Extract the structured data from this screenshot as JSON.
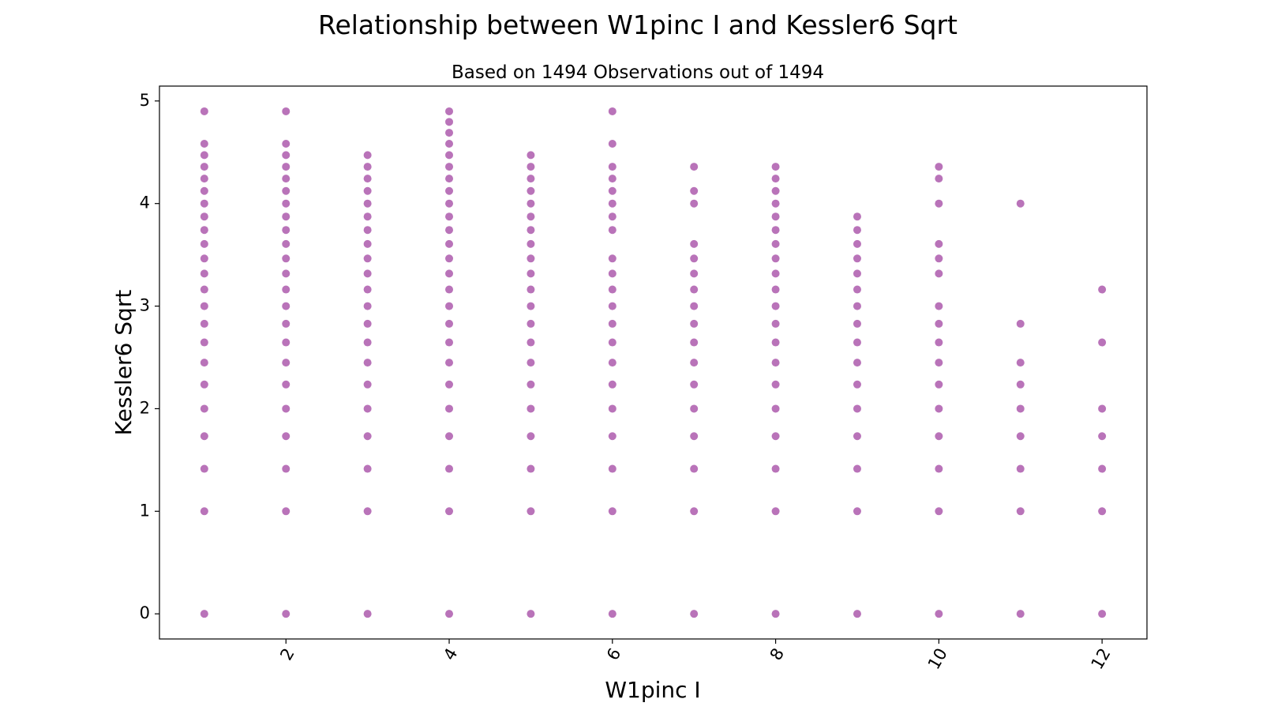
{
  "chart_data": {
    "type": "scatter",
    "title": "Relationship between W1pinc I and Kessler6 Sqrt",
    "subtitle": "Based on 1494 Observations out of 1494",
    "xlabel": "W1pinc I",
    "ylabel": "Kessler6 Sqrt",
    "xlim": [
      0.45,
      12.55
    ],
    "ylim": [
      -0.245,
      5.145
    ],
    "x_ticks": [
      2,
      4,
      6,
      8,
      10,
      12
    ],
    "y_ticks": [
      0,
      1,
      2,
      3,
      4,
      5
    ],
    "grid": false,
    "marker_color": "#800080",
    "marker_opacity": 0.55,
    "series": [
      {
        "points": [
          [
            1,
            0
          ],
          [
            1,
            1
          ],
          [
            1,
            1.414
          ],
          [
            1,
            1.732
          ],
          [
            1,
            2
          ],
          [
            1,
            2.236
          ],
          [
            1,
            2.449
          ],
          [
            1,
            2.646
          ],
          [
            1,
            2.828
          ],
          [
            1,
            3
          ],
          [
            1,
            3.162
          ],
          [
            1,
            3.317
          ],
          [
            1,
            3.464
          ],
          [
            1,
            3.606
          ],
          [
            1,
            3.742
          ],
          [
            1,
            3.873
          ],
          [
            1,
            4
          ],
          [
            1,
            4.123
          ],
          [
            1,
            4.243
          ],
          [
            1,
            4.359
          ],
          [
            1,
            4.472
          ],
          [
            1,
            4.583
          ],
          [
            1,
            4.899
          ],
          [
            2,
            0
          ],
          [
            2,
            1
          ],
          [
            2,
            1.414
          ],
          [
            2,
            1.732
          ],
          [
            2,
            2
          ],
          [
            2,
            2.236
          ],
          [
            2,
            2.449
          ],
          [
            2,
            2.646
          ],
          [
            2,
            2.828
          ],
          [
            2,
            3
          ],
          [
            2,
            3.162
          ],
          [
            2,
            3.317
          ],
          [
            2,
            3.464
          ],
          [
            2,
            3.606
          ],
          [
            2,
            3.742
          ],
          [
            2,
            3.873
          ],
          [
            2,
            4
          ],
          [
            2,
            4.123
          ],
          [
            2,
            4.243
          ],
          [
            2,
            4.359
          ],
          [
            2,
            4.472
          ],
          [
            2,
            4.583
          ],
          [
            2,
            4.899
          ],
          [
            3,
            0
          ],
          [
            3,
            1
          ],
          [
            3,
            1.414
          ],
          [
            3,
            1.732
          ],
          [
            3,
            2
          ],
          [
            3,
            2.236
          ],
          [
            3,
            2.449
          ],
          [
            3,
            2.646
          ],
          [
            3,
            2.828
          ],
          [
            3,
            3
          ],
          [
            3,
            3.162
          ],
          [
            3,
            3.317
          ],
          [
            3,
            3.464
          ],
          [
            3,
            3.606
          ],
          [
            3,
            3.742
          ],
          [
            3,
            3.873
          ],
          [
            3,
            4
          ],
          [
            3,
            4.123
          ],
          [
            3,
            4.243
          ],
          [
            3,
            4.359
          ],
          [
            3,
            4.472
          ],
          [
            4,
            0
          ],
          [
            4,
            1
          ],
          [
            4,
            1.414
          ],
          [
            4,
            1.732
          ],
          [
            4,
            2
          ],
          [
            4,
            2.236
          ],
          [
            4,
            2.449
          ],
          [
            4,
            2.646
          ],
          [
            4,
            2.828
          ],
          [
            4,
            3
          ],
          [
            4,
            3.162
          ],
          [
            4,
            3.317
          ],
          [
            4,
            3.464
          ],
          [
            4,
            3.606
          ],
          [
            4,
            3.742
          ],
          [
            4,
            3.873
          ],
          [
            4,
            4
          ],
          [
            4,
            4.123
          ],
          [
            4,
            4.243
          ],
          [
            4,
            4.359
          ],
          [
            4,
            4.472
          ],
          [
            4,
            4.583
          ],
          [
            4,
            4.69
          ],
          [
            4,
            4.796
          ],
          [
            4,
            4.899
          ],
          [
            5,
            0
          ],
          [
            5,
            1
          ],
          [
            5,
            1.414
          ],
          [
            5,
            1.732
          ],
          [
            5,
            2
          ],
          [
            5,
            2.236
          ],
          [
            5,
            2.449
          ],
          [
            5,
            2.646
          ],
          [
            5,
            2.828
          ],
          [
            5,
            3
          ],
          [
            5,
            3.162
          ],
          [
            5,
            3.317
          ],
          [
            5,
            3.464
          ],
          [
            5,
            3.606
          ],
          [
            5,
            3.742
          ],
          [
            5,
            3.873
          ],
          [
            5,
            4
          ],
          [
            5,
            4.123
          ],
          [
            5,
            4.243
          ],
          [
            5,
            4.359
          ],
          [
            5,
            4.472
          ],
          [
            6,
            0
          ],
          [
            6,
            1
          ],
          [
            6,
            1.414
          ],
          [
            6,
            1.732
          ],
          [
            6,
            2
          ],
          [
            6,
            2.236
          ],
          [
            6,
            2.449
          ],
          [
            6,
            2.646
          ],
          [
            6,
            2.828
          ],
          [
            6,
            3
          ],
          [
            6,
            3.162
          ],
          [
            6,
            3.317
          ],
          [
            6,
            3.464
          ],
          [
            6,
            3.742
          ],
          [
            6,
            3.873
          ],
          [
            6,
            4
          ],
          [
            6,
            4.123
          ],
          [
            6,
            4.243
          ],
          [
            6,
            4.359
          ],
          [
            6,
            4.583
          ],
          [
            6,
            4.899
          ],
          [
            7,
            0
          ],
          [
            7,
            1
          ],
          [
            7,
            1.414
          ],
          [
            7,
            1.732
          ],
          [
            7,
            2
          ],
          [
            7,
            2.236
          ],
          [
            7,
            2.449
          ],
          [
            7,
            2.646
          ],
          [
            7,
            2.828
          ],
          [
            7,
            3
          ],
          [
            7,
            3.162
          ],
          [
            7,
            3.317
          ],
          [
            7,
            3.464
          ],
          [
            7,
            3.606
          ],
          [
            7,
            4
          ],
          [
            7,
            4.123
          ],
          [
            7,
            4.359
          ],
          [
            8,
            0
          ],
          [
            8,
            1
          ],
          [
            8,
            1.414
          ],
          [
            8,
            1.732
          ],
          [
            8,
            2
          ],
          [
            8,
            2.236
          ],
          [
            8,
            2.449
          ],
          [
            8,
            2.646
          ],
          [
            8,
            2.828
          ],
          [
            8,
            3
          ],
          [
            8,
            3.162
          ],
          [
            8,
            3.317
          ],
          [
            8,
            3.464
          ],
          [
            8,
            3.606
          ],
          [
            8,
            3.742
          ],
          [
            8,
            3.873
          ],
          [
            8,
            4
          ],
          [
            8,
            4.123
          ],
          [
            8,
            4.243
          ],
          [
            8,
            4.359
          ],
          [
            9,
            0
          ],
          [
            9,
            1
          ],
          [
            9,
            1.414
          ],
          [
            9,
            1.732
          ],
          [
            9,
            2
          ],
          [
            9,
            2.236
          ],
          [
            9,
            2.449
          ],
          [
            9,
            2.646
          ],
          [
            9,
            2.828
          ],
          [
            9,
            3
          ],
          [
            9,
            3.162
          ],
          [
            9,
            3.317
          ],
          [
            9,
            3.464
          ],
          [
            9,
            3.606
          ],
          [
            9,
            3.742
          ],
          [
            9,
            3.873
          ],
          [
            10,
            0
          ],
          [
            10,
            1
          ],
          [
            10,
            1.414
          ],
          [
            10,
            1.732
          ],
          [
            10,
            2
          ],
          [
            10,
            2.236
          ],
          [
            10,
            2.449
          ],
          [
            10,
            2.646
          ],
          [
            10,
            2.828
          ],
          [
            10,
            3
          ],
          [
            10,
            3.317
          ],
          [
            10,
            3.464
          ],
          [
            10,
            3.606
          ],
          [
            10,
            4
          ],
          [
            10,
            4.243
          ],
          [
            10,
            4.359
          ],
          [
            11,
            0
          ],
          [
            11,
            1
          ],
          [
            11,
            1.414
          ],
          [
            11,
            1.732
          ],
          [
            11,
            2
          ],
          [
            11,
            2.236
          ],
          [
            11,
            2.449
          ],
          [
            11,
            2.828
          ],
          [
            11,
            4
          ],
          [
            12,
            0
          ],
          [
            12,
            1
          ],
          [
            12,
            1.414
          ],
          [
            12,
            1.732
          ],
          [
            12,
            2
          ],
          [
            12,
            2.646
          ],
          [
            12,
            3.162
          ]
        ]
      }
    ]
  }
}
